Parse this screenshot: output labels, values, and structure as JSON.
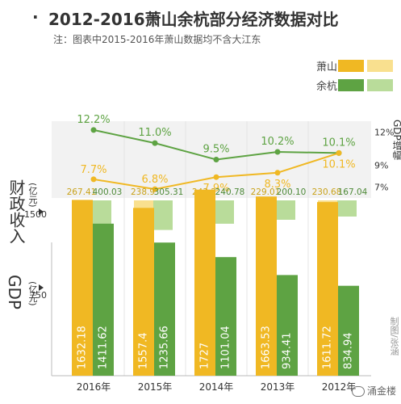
{
  "header": {
    "bullet": "·",
    "title": "2012-2016萧山余杭部分经济数据对比",
    "note": "注：图表中2015-2016年萧山数据均不含大江东"
  },
  "legend": [
    {
      "name": "萧山",
      "color_dark": "#f0b823",
      "color_light": "#f9e08f"
    },
    {
      "name": "余杭",
      "color_dark": "#5ea343",
      "color_light": "#b9dc9a"
    }
  ],
  "axis_labels": {
    "gdp_growth": "GDP增幅",
    "fiscal": "财政收入",
    "fiscal_unit": "(亿元)",
    "gdp": "GDP",
    "gdp_unit": "(亿元)"
  },
  "source": "制图/张涵",
  "watermark": "涌金楼",
  "chart_data": [
    {
      "type": "line",
      "title": "GDP增幅",
      "categories": [
        "2016年",
        "2015年",
        "2014年",
        "2013年",
        "2012年"
      ],
      "series": [
        {
          "name": "余杭",
          "values": [
            12.2,
            11.0,
            9.5,
            10.2,
            10.1
          ],
          "labels": [
            "12.2%",
            "11.0%",
            "9.5%",
            "10.2%",
            "10.1%"
          ],
          "color": "#5ea343"
        },
        {
          "name": "萧山",
          "values": [
            7.7,
            6.8,
            7.9,
            8.3,
            10.1
          ],
          "labels": [
            "7.7%",
            "6.8%",
            "7.9%",
            "8.3%",
            "10.1%"
          ],
          "color": "#f0b823"
        }
      ],
      "ytick_labels": [
        "12%",
        "9%",
        "7%"
      ],
      "yticks": [
        12,
        9,
        7
      ]
    },
    {
      "type": "bar",
      "title": "财政收入",
      "unit": "亿元",
      "categories": [
        "2016年",
        "2015年",
        "2014年",
        "2013年",
        "2012年"
      ],
      "series": [
        {
          "name": "萧山",
          "values": [
            267.41,
            238.9,
            243.2,
            229.01,
            230.68
          ],
          "labels": [
            "267.41",
            "238.9",
            "243.2",
            "229.01",
            "230.68"
          ],
          "color": "#f9e08f"
        },
        {
          "name": "余杭",
          "values": [
            400.03,
            305.31,
            240.78,
            200.1,
            167.04
          ],
          "labels": [
            "400.03",
            "305.31",
            "240.78",
            "200.10",
            "167.04"
          ],
          "color": "#b9dc9a"
        }
      ]
    },
    {
      "type": "bar",
      "title": "GDP",
      "unit": "亿元",
      "categories": [
        "2016年",
        "2015年",
        "2014年",
        "2013年",
        "2012年"
      ],
      "series": [
        {
          "name": "萧山",
          "values": [
            1632.18,
            1557.4,
            1727,
            1663.53,
            1611.72
          ],
          "labels": [
            "1632.18",
            "1557.4",
            "1727",
            "1663.53",
            "1611.72"
          ],
          "color": "#f0b823"
        },
        {
          "name": "余杭",
          "values": [
            1411.62,
            1235.66,
            1101.04,
            934.41,
            834.94
          ],
          "labels": [
            "1411.62",
            "1235.66",
            "1101.04",
            "934.41",
            "834.94"
          ],
          "color": "#5ea343"
        }
      ],
      "yticks": [
        1500,
        750
      ],
      "ylim": [
        0,
        1800
      ]
    }
  ]
}
